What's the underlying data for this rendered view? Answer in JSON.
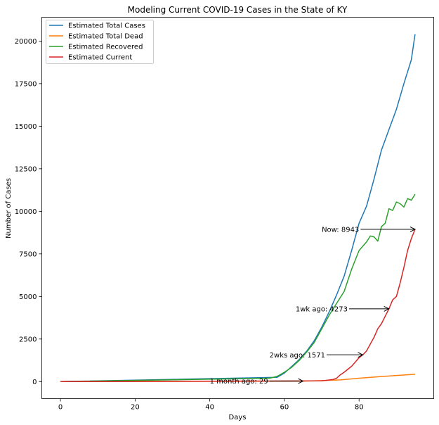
{
  "chart_data": {
    "type": "line",
    "title": "Modeling Current COVID-19 Cases in the State of KY",
    "xlabel": "Days",
    "ylabel": "Number of Cases",
    "xlim": [
      -5,
      100
    ],
    "ylim": [
      -1000,
      21400
    ],
    "xticks": [
      0,
      20,
      40,
      60,
      80
    ],
    "yticks": [
      0,
      2500,
      5000,
      7500,
      10000,
      12500,
      15000,
      17500,
      20000
    ],
    "grid": false,
    "legend_position": "upper-left",
    "series": [
      {
        "name": "Estimated Total Cases",
        "color": "#1f77b4",
        "x": [
          0,
          58,
          60,
          62,
          64,
          66,
          68,
          70,
          72,
          74,
          76,
          78,
          80,
          82,
          83,
          84,
          86,
          88,
          90,
          92,
          94,
          95
        ],
        "y": [
          0,
          250,
          500,
          900,
          1300,
          1800,
          2400,
          3200,
          4100,
          5100,
          6200,
          7700,
          9300,
          10300,
          11100,
          11900,
          13600,
          14800,
          16000,
          17500,
          18900,
          20400
        ]
      },
      {
        "name": "Estimated Total Dead",
        "color": "#ff7f0e",
        "x": [
          0,
          65,
          70,
          75,
          80,
          85,
          90,
          95
        ],
        "y": [
          0,
          30,
          60,
          100,
          200,
          280,
          360,
          430
        ]
      },
      {
        "name": "Estimated Recovered",
        "color": "#2ca02c",
        "x": [
          0,
          56,
          58,
          60,
          62,
          64,
          66,
          68,
          70,
          72,
          74,
          76,
          78,
          80,
          82,
          83,
          84,
          85,
          86,
          87,
          88,
          89,
          90,
          91,
          92,
          93,
          94,
          95
        ],
        "y": [
          0,
          200,
          300,
          550,
          850,
          1250,
          1750,
          2300,
          3100,
          3900,
          4600,
          5300,
          6600,
          7700,
          8200,
          8550,
          8500,
          8250,
          9100,
          9300,
          10150,
          10050,
          10550,
          10450,
          10250,
          10750,
          10650,
          11000
        ]
      },
      {
        "name": "Estimated Current",
        "color": "#d62728",
        "x": [
          0,
          70,
          73,
          74,
          75,
          76,
          78,
          80,
          81,
          82,
          84,
          85,
          86,
          88,
          89,
          90,
          91,
          92,
          93,
          94,
          95
        ],
        "y": [
          0,
          40,
          120,
          200,
          400,
          550,
          900,
          1400,
          1571,
          1800,
          2600,
          3100,
          3400,
          4273,
          4800,
          5000,
          5800,
          6700,
          7700,
          8400,
          8943
        ]
      }
    ],
    "annotations": [
      {
        "text": "Now: 8943",
        "text_x": 70,
        "text_y": 8943,
        "point_x": 95,
        "point_y": 8943
      },
      {
        "text": "1wk ago: 4273",
        "text_x": 63,
        "text_y": 4273,
        "point_x": 88,
        "point_y": 4273
      },
      {
        "text": "2wks ago: 1571",
        "text_x": 56,
        "text_y": 1571,
        "point_x": 81,
        "point_y": 1571
      },
      {
        "text": "1 month ago: 29",
        "text_x": 40,
        "text_y": 29,
        "point_x": 65,
        "point_y": 29
      }
    ]
  }
}
